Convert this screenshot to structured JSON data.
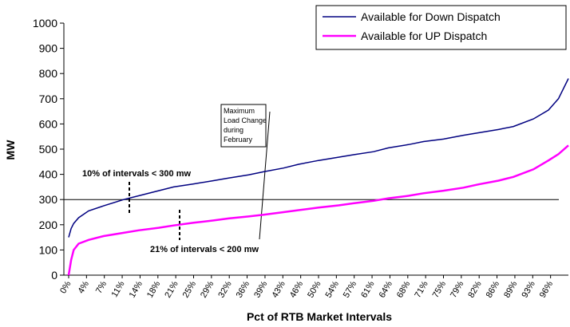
{
  "chart_data": {
    "type": "line",
    "x_label": "Pct of RTB Market Intervals",
    "y_label": "MW",
    "xlim": [
      0,
      100
    ],
    "ylim": [
      0,
      1000
    ],
    "yticks": [
      0,
      100,
      200,
      300,
      400,
      500,
      600,
      700,
      800,
      900,
      1000
    ],
    "xticks": [
      {
        "value": 0,
        "label": "0%"
      },
      {
        "value": 3.57,
        "label": "4%"
      },
      {
        "value": 7.14,
        "label": "7%"
      },
      {
        "value": 10.71,
        "label": "11%"
      },
      {
        "value": 14.29,
        "label": "14%"
      },
      {
        "value": 17.86,
        "label": "18%"
      },
      {
        "value": 21.43,
        "label": "21%"
      },
      {
        "value": 25,
        "label": "25%"
      },
      {
        "value": 28.57,
        "label": "29%"
      },
      {
        "value": 32.14,
        "label": "32%"
      },
      {
        "value": 35.71,
        "label": "36%"
      },
      {
        "value": 39.29,
        "label": "39%"
      },
      {
        "value": 42.86,
        "label": "43%"
      },
      {
        "value": 46.43,
        "label": "46%"
      },
      {
        "value": 50,
        "label": "50%"
      },
      {
        "value": 53.57,
        "label": "54%"
      },
      {
        "value": 57.14,
        "label": "57%"
      },
      {
        "value": 60.71,
        "label": "61%"
      },
      {
        "value": 64.29,
        "label": "64%"
      },
      {
        "value": 67.86,
        "label": "68%"
      },
      {
        "value": 71.43,
        "label": "71%"
      },
      {
        "value": 75,
        "label": "75%"
      },
      {
        "value": 78.57,
        "label": "79%"
      },
      {
        "value": 82.14,
        "label": "82%"
      },
      {
        "value": 85.71,
        "label": "86%"
      },
      {
        "value": 89.29,
        "label": "89%"
      },
      {
        "value": 92.86,
        "label": "93%"
      },
      {
        "value": 96.43,
        "label": "96%"
      }
    ],
    "x": [
      0,
      0.5,
      1,
      2,
      4,
      7,
      11,
      14,
      18,
      21,
      25,
      29,
      32,
      36,
      39,
      43,
      46,
      50,
      54,
      57,
      61,
      64,
      68,
      71,
      75,
      79,
      82,
      86,
      89,
      93,
      96,
      98,
      100
    ],
    "series": [
      {
        "name": "Available for Down Dispatch",
        "color": "#000080",
        "values": [
          150,
          185,
          205,
          228,
          255,
          275,
          300,
          315,
          335,
          350,
          362,
          375,
          385,
          398,
          410,
          425,
          440,
          455,
          468,
          478,
          490,
          505,
          518,
          530,
          540,
          555,
          565,
          578,
          590,
          620,
          655,
          700,
          780
        ]
      },
      {
        "name": "Available for UP Dispatch",
        "color": "#ff00ff",
        "values": [
          0,
          60,
          100,
          125,
          140,
          155,
          168,
          178,
          188,
          197,
          208,
          217,
          225,
          233,
          240,
          250,
          258,
          268,
          277,
          285,
          295,
          305,
          315,
          325,
          335,
          347,
          360,
          375,
          390,
          420,
          455,
          480,
          515
        ]
      }
    ],
    "reference_line": 300,
    "annotations": [
      {
        "text": "10% of intervals < 300 mw",
        "color": "#000080"
      },
      {
        "text": "21% of intervals < 200 mw",
        "color": "#ff00ff"
      }
    ],
    "box_annotation": [
      "Maximum",
      "Load Change",
      "during",
      "February"
    ]
  }
}
